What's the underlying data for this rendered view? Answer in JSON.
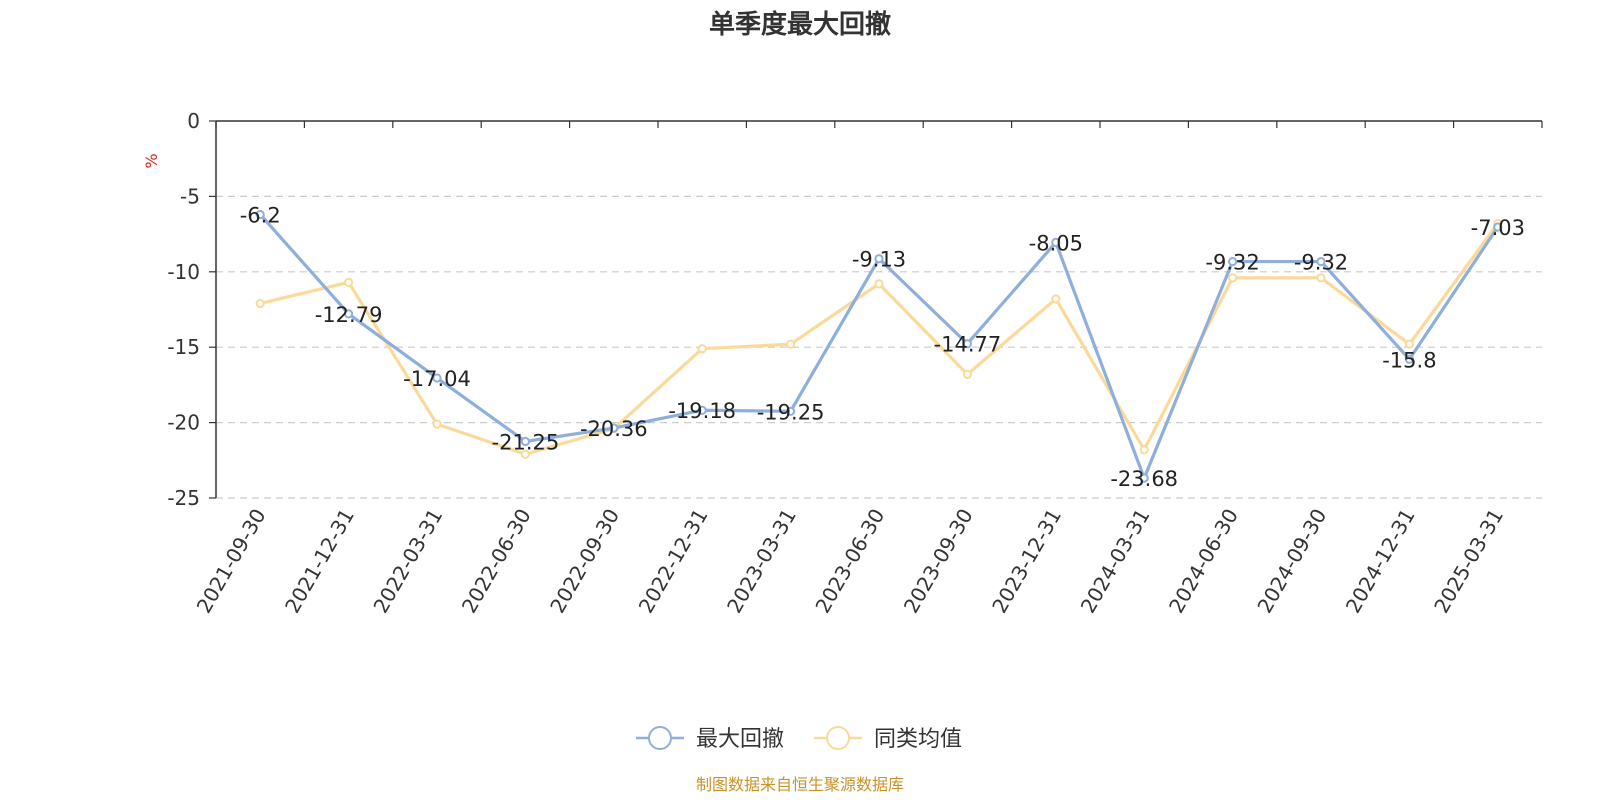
{
  "chart_data": {
    "type": "line",
    "title": "单季度最大回撤",
    "ylabel": "%",
    "ylim": [
      -25,
      0
    ],
    "yticks": [
      0,
      -5,
      -10,
      -15,
      -20,
      -25
    ],
    "grid": true,
    "legend_position": "bottom-center",
    "categories": [
      "2021-09-30",
      "2021-12-31",
      "2022-03-31",
      "2022-06-30",
      "2022-09-30",
      "2022-12-31",
      "2023-03-31",
      "2023-06-30",
      "2023-09-30",
      "2023-12-31",
      "2024-03-31",
      "2024-06-30",
      "2024-09-30",
      "2024-12-31",
      "2025-03-31"
    ],
    "series": [
      {
        "name": "最大回撤",
        "color": "#8eaedb",
        "show_labels": true,
        "values": [
          -6.2,
          -12.79,
          -17.04,
          -21.25,
          -20.36,
          -19.18,
          -19.25,
          -9.13,
          -14.77,
          -8.05,
          -23.68,
          -9.32,
          -9.32,
          -15.8,
          -7.03
        ]
      },
      {
        "name": "同类均值",
        "color": "#fbd999",
        "show_labels": false,
        "values": [
          -12.1,
          -10.7,
          -20.1,
          -22.1,
          -20.4,
          -15.1,
          -14.8,
          -10.8,
          -16.8,
          -11.8,
          -21.8,
          -10.4,
          -10.4,
          -14.8,
          -6.8
        ]
      }
    ]
  },
  "source_note": "制图数据来自恒生聚源数据库",
  "colors": {
    "axis": "#333333",
    "grid": "#cccccc",
    "unit": "#e02020",
    "source": "#c8922a"
  }
}
